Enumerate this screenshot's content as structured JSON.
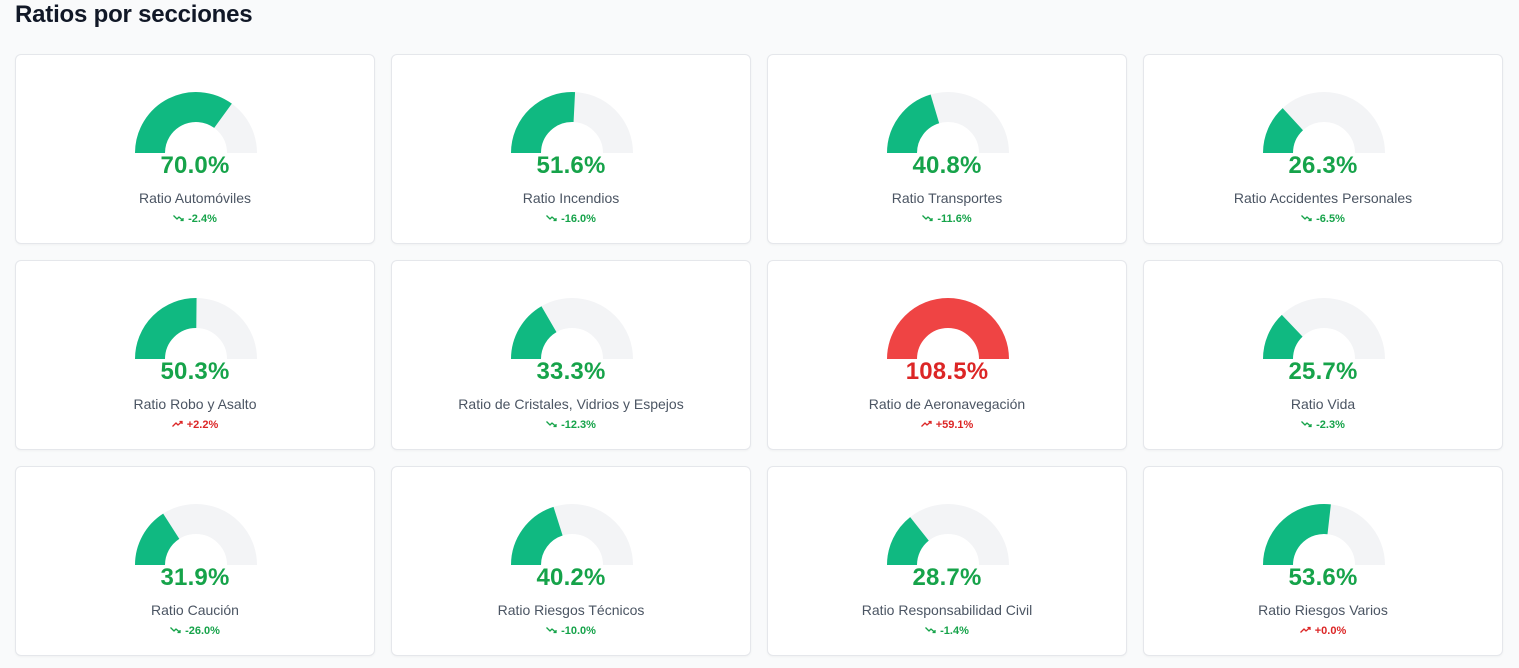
{
  "page": {
    "title": "Ratios por secciones"
  },
  "colors": {
    "good": "#10b981",
    "bad": "#ef4444",
    "track": "#f3f4f6",
    "good_text": "#16a34a",
    "bad_text": "#dc2626"
  },
  "cards": [
    {
      "label": "Ratio Automóviles",
      "value_text": "70.0%",
      "value": 70.0,
      "change_text": "-2.4%",
      "trend": "down",
      "trend_icon": "trending-down-icon",
      "status": "good"
    },
    {
      "label": "Ratio Incendios",
      "value_text": "51.6%",
      "value": 51.6,
      "change_text": "-16.0%",
      "trend": "down",
      "trend_icon": "trending-down-icon",
      "status": "good"
    },
    {
      "label": "Ratio Transportes",
      "value_text": "40.8%",
      "value": 40.8,
      "change_text": "-11.6%",
      "trend": "down",
      "trend_icon": "trending-down-icon",
      "status": "good"
    },
    {
      "label": "Ratio Accidentes Personales",
      "value_text": "26.3%",
      "value": 26.3,
      "change_text": "-6.5%",
      "trend": "down",
      "trend_icon": "trending-down-icon",
      "status": "good"
    },
    {
      "label": "Ratio Robo y Asalto",
      "value_text": "50.3%",
      "value": 50.3,
      "change_text": "+2.2%",
      "trend": "up",
      "trend_icon": "trending-up-icon",
      "status": "good"
    },
    {
      "label": "Ratio de Cristales, Vidrios y Espejos",
      "value_text": "33.3%",
      "value": 33.3,
      "change_text": "-12.3%",
      "trend": "down",
      "trend_icon": "trending-down-icon",
      "status": "good"
    },
    {
      "label": "Ratio de Aeronavegación",
      "value_text": "108.5%",
      "value": 108.5,
      "change_text": "+59.1%",
      "trend": "up",
      "trend_icon": "trending-up-icon",
      "status": "bad"
    },
    {
      "label": "Ratio Vida",
      "value_text": "25.7%",
      "value": 25.7,
      "change_text": "-2.3%",
      "trend": "down",
      "trend_icon": "trending-down-icon",
      "status": "good"
    },
    {
      "label": "Ratio Caución",
      "value_text": "31.9%",
      "value": 31.9,
      "change_text": "-26.0%",
      "trend": "down",
      "trend_icon": "trending-down-icon",
      "status": "good"
    },
    {
      "label": "Ratio Riesgos Técnicos",
      "value_text": "40.2%",
      "value": 40.2,
      "change_text": "-10.0%",
      "trend": "down",
      "trend_icon": "trending-down-icon",
      "status": "good"
    },
    {
      "label": "Ratio Responsabilidad Civil",
      "value_text": "28.7%",
      "value": 28.7,
      "change_text": "-1.4%",
      "trend": "down",
      "trend_icon": "trending-down-icon",
      "status": "good"
    },
    {
      "label": "Ratio Riesgos Varios",
      "value_text": "53.6%",
      "value": 53.6,
      "change_text": "+0.0%",
      "trend": "up",
      "trend_icon": "trending-up-icon",
      "status": "good"
    }
  ]
}
